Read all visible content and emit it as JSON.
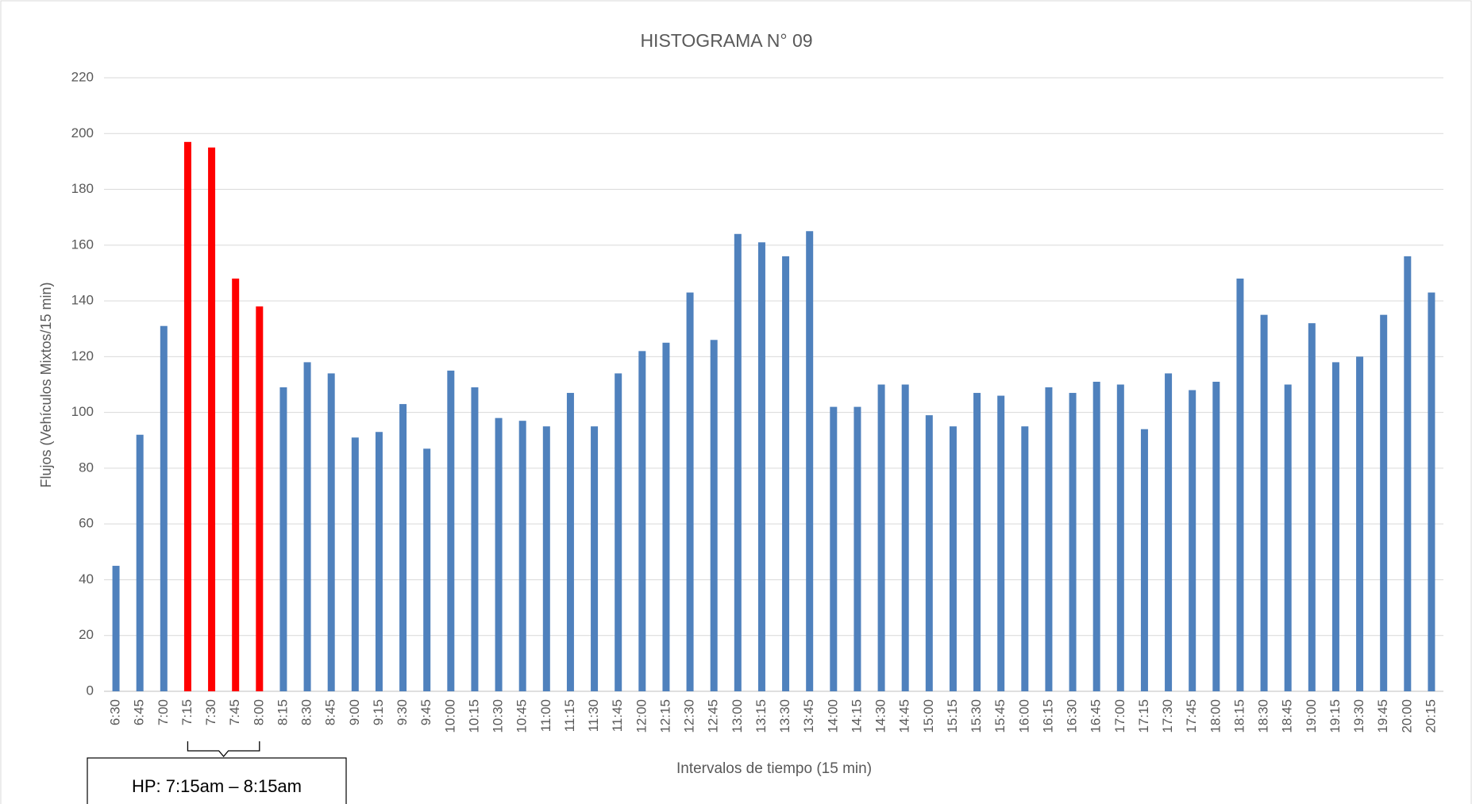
{
  "chart_data": {
    "type": "bar",
    "title": "HISTOGRAMA N° 09",
    "x_label": "Intervalos de tiempo (15 min)",
    "y_label": "Flujos (Vehículos Mixtos/15 min)",
    "annotation": "HP: 7:15am – 8:15am",
    "categories": [
      "6:30",
      "6:45",
      "7:00",
      "7:15",
      "7:30",
      "7:45",
      "8:00",
      "8:15",
      "8:30",
      "8:45",
      "9:00",
      "9:15",
      "9:30",
      "9:45",
      "10:00",
      "10:15",
      "10:30",
      "10:45",
      "11:00",
      "11:15",
      "11:30",
      "11:45",
      "12:00",
      "12:15",
      "12:30",
      "12:45",
      "13:00",
      "13:15",
      "13:30",
      "13:45",
      "14:00",
      "14:15",
      "14:30",
      "14:45",
      "15:00",
      "15:15",
      "15:30",
      "15:45",
      "16:00",
      "16:15",
      "16:30",
      "16:45",
      "17:00",
      "17:15",
      "17:30",
      "17:45",
      "18:00",
      "18:15",
      "18:30",
      "18:45",
      "19:00",
      "19:15",
      "19:30",
      "19:45",
      "20:00",
      "20:15"
    ],
    "values": [
      45,
      92,
      131,
      197,
      195,
      148,
      138,
      109,
      118,
      114,
      91,
      93,
      103,
      87,
      115,
      109,
      98,
      97,
      95,
      107,
      95,
      114,
      122,
      125,
      143,
      126,
      164,
      161,
      156,
      165,
      102,
      102,
      110,
      110,
      99,
      95,
      107,
      106,
      95,
      109,
      107,
      111,
      110,
      94,
      114,
      108,
      111,
      148,
      135,
      110,
      132,
      118,
      120,
      135,
      156,
      143
    ],
    "colors": [
      "#4f81bd",
      "#4f81bd",
      "#4f81bd",
      "#ff0000",
      "#ff0000",
      "#ff0000",
      "#ff0000",
      "#4f81bd",
      "#4f81bd",
      "#4f81bd",
      "#4f81bd",
      "#4f81bd",
      "#4f81bd",
      "#4f81bd",
      "#4f81bd",
      "#4f81bd",
      "#4f81bd",
      "#4f81bd",
      "#4f81bd",
      "#4f81bd",
      "#4f81bd",
      "#4f81bd",
      "#4f81bd",
      "#4f81bd",
      "#4f81bd",
      "#4f81bd",
      "#4f81bd",
      "#4f81bd",
      "#4f81bd",
      "#4f81bd",
      "#4f81bd",
      "#4f81bd",
      "#4f81bd",
      "#4f81bd",
      "#4f81bd",
      "#4f81bd",
      "#4f81bd",
      "#4f81bd",
      "#4f81bd",
      "#4f81bd",
      "#4f81bd",
      "#4f81bd",
      "#4f81bd",
      "#4f81bd",
      "#4f81bd",
      "#4f81bd",
      "#4f81bd",
      "#4f81bd",
      "#4f81bd",
      "#4f81bd",
      "#4f81bd",
      "#4f81bd",
      "#4f81bd",
      "#4f81bd",
      "#4f81bd",
      "#4f81bd"
    ],
    "ylim": [
      0,
      220
    ],
    "yticks": [
      0,
      20,
      40,
      60,
      80,
      100,
      120,
      140,
      160,
      180,
      200,
      220
    ],
    "grid": true
  }
}
